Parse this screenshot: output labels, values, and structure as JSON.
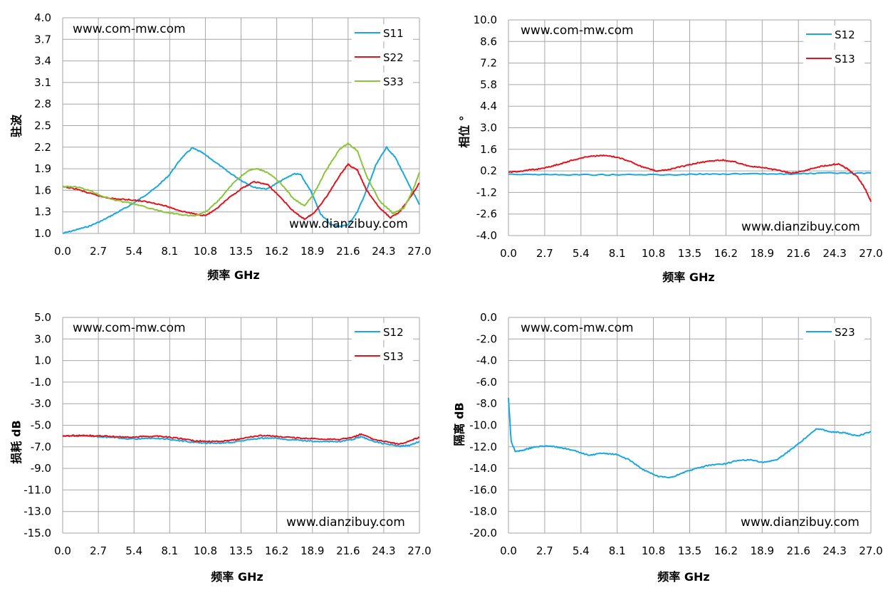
{
  "chart_data": [
    {
      "type": "line",
      "ylabel": "驻波",
      "xlabel": "频率 GHz",
      "xticks": [
        "0.0",
        "2.7",
        "5.4",
        "8.1",
        "10.8",
        "13.5",
        "16.2",
        "18.9",
        "21.6",
        "24.3",
        "27.0"
      ],
      "yticks": [
        "4.0",
        "3.7",
        "3.4",
        "3.1",
        "2.8",
        "2.5",
        "2.2",
        "1.9",
        "1.6",
        "1.3",
        "1.0"
      ],
      "xlim": [
        0,
        27
      ],
      "ylim": [
        1.0,
        4.0
      ],
      "grid": true,
      "legend": "top-right",
      "watermarks": [
        "www.com-mw.com",
        "www.dianzibuy.com"
      ],
      "series": [
        {
          "name": "S11",
          "color": "#1aa7e0",
          "x": [
            0,
            1,
            2,
            3,
            4,
            5,
            6,
            7,
            8,
            9,
            9.8,
            10.5,
            11.5,
            12.5,
            13.5,
            14.5,
            15.5,
            16.5,
            17.5,
            18,
            18.8,
            19.5,
            20.3,
            21,
            21.6,
            22.3,
            23,
            23.7,
            24.5,
            25.2,
            26,
            27
          ],
          "y": [
            1.0,
            1.05,
            1.1,
            1.18,
            1.28,
            1.38,
            1.5,
            1.63,
            1.8,
            2.05,
            2.19,
            2.13,
            2.0,
            1.86,
            1.74,
            1.64,
            1.62,
            1.73,
            1.83,
            1.82,
            1.58,
            1.28,
            1.12,
            1.1,
            1.12,
            1.3,
            1.6,
            1.95,
            2.2,
            2.05,
            1.75,
            1.4
          ]
        },
        {
          "name": "S22",
          "color": "#e0141e",
          "x": [
            0,
            1,
            2,
            3,
            4,
            5,
            6,
            7,
            8,
            9,
            10,
            10.8,
            11.5,
            12.5,
            13.5,
            14.5,
            15.5,
            16.5,
            17.5,
            18.3,
            19,
            20,
            21,
            21.6,
            22.3,
            23,
            24,
            24.8,
            25.5,
            26.3,
            27
          ],
          "y": [
            1.65,
            1.62,
            1.56,
            1.51,
            1.48,
            1.47,
            1.45,
            1.42,
            1.37,
            1.31,
            1.27,
            1.25,
            1.32,
            1.48,
            1.62,
            1.72,
            1.68,
            1.5,
            1.3,
            1.2,
            1.28,
            1.52,
            1.82,
            1.96,
            1.88,
            1.6,
            1.35,
            1.22,
            1.3,
            1.5,
            1.7
          ]
        },
        {
          "name": "S33",
          "color": "#8ac43a",
          "x": [
            0,
            1,
            2,
            3,
            4,
            5,
            6,
            7,
            8,
            9,
            10,
            11,
            12,
            13,
            14,
            14.7,
            15.5,
            16.5,
            17.5,
            18.3,
            19,
            20,
            21,
            21.6,
            22.3,
            23,
            24,
            25,
            25.8,
            26.5,
            27
          ],
          "y": [
            1.65,
            1.65,
            1.6,
            1.52,
            1.46,
            1.43,
            1.38,
            1.33,
            1.29,
            1.26,
            1.24,
            1.32,
            1.5,
            1.72,
            1.87,
            1.9,
            1.85,
            1.7,
            1.48,
            1.38,
            1.55,
            1.9,
            2.18,
            2.25,
            2.15,
            1.8,
            1.45,
            1.28,
            1.35,
            1.6,
            1.85
          ]
        }
      ]
    },
    {
      "type": "line",
      "ylabel": "相位 °",
      "xlabel": "频率 GHz",
      "xticks": [
        "0.0",
        "2.7",
        "5.4",
        "8.1",
        "10.8",
        "13.5",
        "16.2",
        "18.9",
        "21.6",
        "24.3",
        "27.0"
      ],
      "yticks": [
        "10.0",
        "8.6",
        "7.2",
        "5.8",
        "4.4",
        "3.0",
        "1.6",
        "0.2",
        "-1.2",
        "-2.6",
        "-4.0"
      ],
      "xlim": [
        0,
        27
      ],
      "ylim": [
        -4.0,
        10.0
      ],
      "grid": true,
      "legend": "top-right",
      "watermarks": [
        "www.com-mw.com",
        "www.dianzibuy.com"
      ],
      "series": [
        {
          "name": "S12",
          "color": "#1aa7e0",
          "x": [
            0,
            3,
            6,
            9,
            12,
            15,
            18,
            21,
            24,
            27
          ],
          "y": [
            0.0,
            -0.05,
            -0.05,
            -0.05,
            -0.05,
            0.0,
            0.0,
            0.0,
            0.05,
            0.05
          ]
        },
        {
          "name": "S13",
          "color": "#e0141e",
          "x": [
            0,
            1,
            2,
            3,
            4,
            5,
            6,
            7,
            8,
            9,
            10,
            11,
            12,
            13,
            14,
            15,
            16,
            17,
            18,
            19,
            20,
            21,
            22,
            23,
            24,
            24.6,
            25.3,
            26,
            26.6,
            27
          ],
          "y": [
            0.1,
            0.2,
            0.3,
            0.45,
            0.7,
            0.95,
            1.15,
            1.2,
            1.1,
            0.85,
            0.45,
            0.2,
            0.3,
            0.5,
            0.7,
            0.85,
            0.9,
            0.75,
            0.5,
            0.4,
            0.25,
            0.05,
            0.2,
            0.45,
            0.6,
            0.65,
            0.3,
            -0.2,
            -1.0,
            -1.8
          ]
        }
      ]
    },
    {
      "type": "line",
      "ylabel": "损耗 dB",
      "xlabel": "频率 GHz",
      "xticks": [
        "0.0",
        "2.7",
        "5.4",
        "8.1",
        "10.8",
        "13.5",
        "16.2",
        "18.9",
        "21.6",
        "24.3",
        "27.0"
      ],
      "yticks": [
        "5.0",
        "3.0",
        "1.0",
        "-1.0",
        "-3.0",
        "-5.0",
        "-7.0",
        "-9.0",
        "-11.0",
        "-13.0",
        "-15.0"
      ],
      "xlim": [
        0,
        27
      ],
      "ylim": [
        -15.0,
        5.0
      ],
      "grid": true,
      "legend": "top-right",
      "watermarks": [
        "www.com-mw.com",
        "www.dianzibuy.com"
      ],
      "series": [
        {
          "name": "S12",
          "color": "#1aa7e0",
          "x": [
            0,
            1,
            2,
            3,
            4,
            5,
            6,
            7,
            8,
            9,
            10,
            11,
            12,
            13,
            14,
            15,
            16,
            17,
            18,
            19,
            20,
            21,
            22,
            22.6,
            23.5,
            24.5,
            25.5,
            26.3,
            27
          ],
          "y": [
            -6.0,
            -6.0,
            -6.0,
            -6.1,
            -6.15,
            -6.25,
            -6.25,
            -6.2,
            -6.3,
            -6.45,
            -6.6,
            -6.65,
            -6.65,
            -6.55,
            -6.35,
            -6.2,
            -6.2,
            -6.3,
            -6.4,
            -6.5,
            -6.5,
            -6.5,
            -6.3,
            -6.05,
            -6.5,
            -6.75,
            -6.95,
            -6.85,
            -6.5
          ]
        },
        {
          "name": "S13",
          "color": "#e0141e",
          "x": [
            0,
            1,
            2,
            3,
            4,
            5,
            6,
            7,
            8,
            9,
            10,
            11,
            12,
            13,
            14,
            15,
            16,
            17,
            18,
            19,
            20,
            21,
            22,
            22.6,
            23.5,
            24.5,
            25.5,
            26.3,
            27
          ],
          "y": [
            -6.0,
            -5.95,
            -5.95,
            -6.0,
            -6.05,
            -6.1,
            -6.05,
            -6.0,
            -6.1,
            -6.25,
            -6.45,
            -6.5,
            -6.5,
            -6.35,
            -6.1,
            -5.95,
            -6.0,
            -6.1,
            -6.2,
            -6.25,
            -6.3,
            -6.3,
            -6.1,
            -5.8,
            -6.3,
            -6.55,
            -6.75,
            -6.45,
            -6.1
          ]
        }
      ]
    },
    {
      "type": "line",
      "ylabel": "隔离 dB",
      "xlabel": "频率 GHz",
      "xticks": [
        "0.0",
        "2.7",
        "5.4",
        "8.1",
        "10.8",
        "13.5",
        "16.2",
        "18.9",
        "21.6",
        "24.3",
        "27.0"
      ],
      "yticks": [
        "0.0",
        "-2.0",
        "-4.0",
        "-6.0",
        "-8.0",
        "-10.0",
        "-12.0",
        "-14.0",
        "-16.0",
        "-18.0",
        "-20.0"
      ],
      "xlim": [
        0,
        27
      ],
      "ylim": [
        -20.0,
        0.0
      ],
      "grid": true,
      "legend": "top-right",
      "watermarks": [
        "www.com-mw.com",
        "www.dianzibuy.com"
      ],
      "series": [
        {
          "name": "S23",
          "color": "#1aa7e0",
          "x": [
            0,
            0.2,
            0.5,
            1,
            1.5,
            2,
            3,
            4,
            5,
            6,
            7,
            8,
            9,
            10,
            11,
            12,
            13,
            14,
            15,
            16,
            17,
            18,
            19,
            20,
            21,
            22,
            23,
            24,
            25,
            26,
            27
          ],
          "y": [
            -7.5,
            -11.5,
            -12.4,
            -12.35,
            -12.15,
            -12.0,
            -11.9,
            -12.1,
            -12.4,
            -12.8,
            -12.6,
            -12.7,
            -13.2,
            -14.1,
            -14.7,
            -14.9,
            -14.4,
            -14.0,
            -13.7,
            -13.6,
            -13.3,
            -13.2,
            -13.45,
            -13.2,
            -12.3,
            -11.3,
            -10.3,
            -10.6,
            -10.7,
            -11.0,
            -10.6
          ]
        }
      ]
    }
  ]
}
